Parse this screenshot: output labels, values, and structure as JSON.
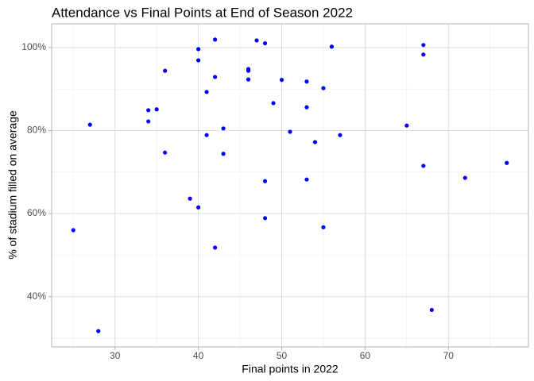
{
  "chart_data": {
    "type": "scatter",
    "title": "Attendance vs Final Points at End of Season 2022",
    "x_label": "Final points in 2022",
    "y_label": "% of stadium filled on average",
    "color": "#0000ff",
    "grid": true,
    "xlim": [
      22.4,
      79.6
    ],
    "ylim": [
      27.9,
      105.7
    ],
    "xticks": [
      30,
      40,
      50,
      60,
      70
    ],
    "yticks": [
      {
        "value": 40,
        "label": "40%"
      },
      {
        "value": 60,
        "label": "60%"
      },
      {
        "value": 80,
        "label": "80%"
      },
      {
        "value": 100,
        "label": "100%"
      }
    ],
    "x": [
      25,
      27,
      28,
      34,
      34,
      35,
      36,
      36,
      39,
      40,
      40,
      40,
      41,
      41,
      42,
      42,
      42,
      43,
      43,
      46,
      46,
      46,
      47,
      48,
      48,
      48,
      49,
      50,
      51,
      53,
      53,
      53,
      54,
      55,
      55,
      56,
      57,
      65,
      67,
      67,
      67,
      68,
      72,
      77
    ],
    "values": [
      56.0,
      81.4,
      31.7,
      84.9,
      82.2,
      85.1,
      94.4,
      74.7,
      63.6,
      99.6,
      96.9,
      61.5,
      89.3,
      78.9,
      101.9,
      92.9,
      51.8,
      80.5,
      74.4,
      94.8,
      94.4,
      92.3,
      101.7,
      101.0,
      67.8,
      58.9,
      86.6,
      92.2,
      79.7,
      91.8,
      85.6,
      68.2,
      77.2,
      90.2,
      56.7,
      100.2,
      78.9,
      81.2,
      100.6,
      98.3,
      71.5,
      36.8,
      68.6,
      72.2
    ]
  }
}
